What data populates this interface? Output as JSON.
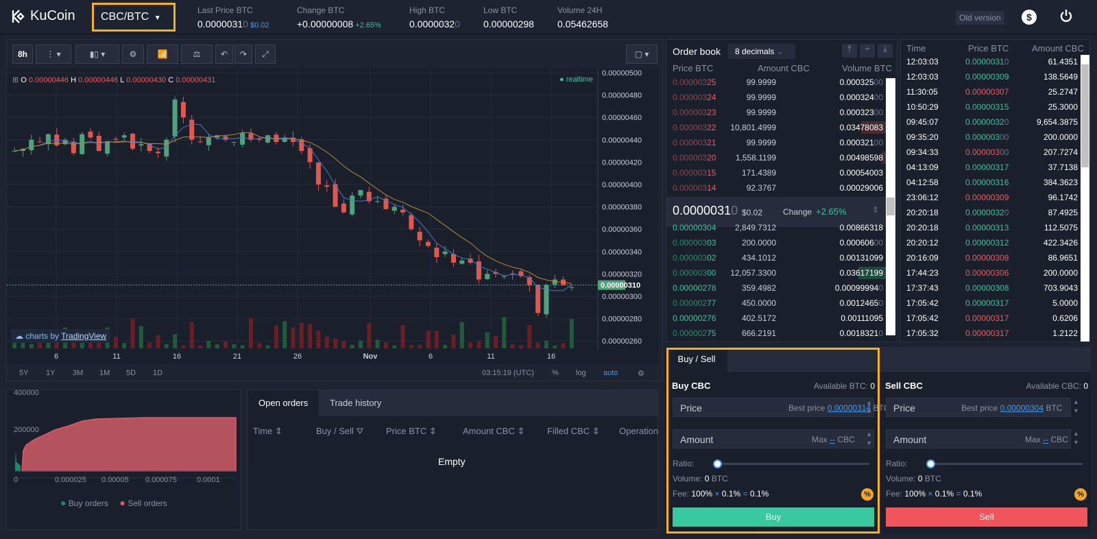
{
  "header": {
    "logo": "KuCoin",
    "pair": "CBC/BTC",
    "stats": [
      {
        "label": "Last Price BTC",
        "value": "0.0000031",
        "value_dim": "0",
        "extra": "$0.02",
        "color": "white"
      },
      {
        "label": "Change BTC",
        "value": "+0.00000008",
        "value_dim": "",
        "extra": "+2.65%",
        "color": "green"
      },
      {
        "label": "High BTC",
        "value": "0.0000032",
        "value_dim": "0",
        "extra": "",
        "color": "green"
      },
      {
        "label": "Low BTC",
        "value": "0.00000298",
        "value_dim": "",
        "extra": "",
        "color": "red"
      },
      {
        "label": "Volume 24H",
        "value": "0.05462658",
        "value_dim": "",
        "extra": "",
        "color": "white"
      }
    ],
    "old_version": "Old version"
  },
  "chart": {
    "interval": "8h",
    "ohlc": {
      "o_label": "O",
      "o": "0.00000446",
      "h_label": "H",
      "h": "0.00000446",
      "l_label": "L",
      "l": "0.00000430",
      "c_label": "C",
      "c": "0.00000431"
    },
    "realtime": "realtime",
    "y_ticks": [
      "0.00000500",
      "0.00000480",
      "0.00000460",
      "0.00000440",
      "0.00000420",
      "0.00000400",
      "0.00000380",
      "0.00000360",
      "0.00000340",
      "0.00000320",
      "0.00000300",
      "0.00000280",
      "0.00000260"
    ],
    "current_price_tag": "0.00000310",
    "x_ticks": [
      "6",
      "11",
      "16",
      "21",
      "26",
      "Nov",
      "6",
      "11",
      "16"
    ],
    "branding_prefix": "charts by",
    "branding_link": "TradingView",
    "ranges": [
      "5Y",
      "1Y",
      "3M",
      "1M",
      "5D",
      "1D"
    ],
    "time": "03:15:19 (UTC)",
    "pct": "%",
    "log": "log",
    "auto": "auto"
  },
  "depth": {
    "y_ticks": [
      "400000",
      "200000"
    ],
    "x_ticks": [
      "0",
      "0.000025",
      "0.00005",
      "0.000075",
      "0.0001"
    ],
    "legend_buy": "Buy orders",
    "legend_sell": "Sell orders",
    "buy_color": "#1d8a6e",
    "sell_color": "#e0596a"
  },
  "orders": {
    "tabs": [
      "Open orders",
      "Trade history"
    ],
    "columns": [
      "Time",
      "Buy / Sell",
      "Price BTC",
      "Amount CBC",
      "Filled CBC",
      "Operation"
    ],
    "empty": "Empty"
  },
  "orderbook": {
    "title": "Order book",
    "decimals": "8 decimals",
    "columns": [
      "Price BTC",
      "Amount CBC",
      "Volume BTC"
    ],
    "asks": [
      {
        "p1": "0.000003",
        "p2": "25",
        "amt": "99.9999",
        "v1": "0.000325",
        "v2": "00"
      },
      {
        "p1": "0.000003",
        "p2": "24",
        "amt": "99.9999",
        "v1": "0.000324",
        "v2": "00"
      },
      {
        "p1": "0.000003",
        "p2": "23",
        "amt": "99.9999",
        "v1": "0.000323",
        "v2": "00"
      },
      {
        "p1": "0.000003",
        "p2": "22",
        "amt": "10,801.4999",
        "v1": "0.03478083",
        "v2": ""
      },
      {
        "p1": "0.000003",
        "p2": "21",
        "amt": "99.9999",
        "v1": "0.000321",
        "v2": "00"
      },
      {
        "p1": "0.000003",
        "p2": "20",
        "amt": "1,558.1199",
        "v1": "0.00498598",
        "v2": ""
      },
      {
        "p1": "0.000003",
        "p2": "15",
        "amt": "171.4389",
        "v1": "0.00054003",
        "v2": ""
      },
      {
        "p1": "0.000003",
        "p2": "14",
        "amt": "92.3767",
        "v1": "0.00029006",
        "v2": ""
      }
    ],
    "mid_price": "0.0000031",
    "mid_price_dim": "0",
    "mid_usd": "$0.02",
    "change_label": "Change",
    "change": "+2.65%",
    "bids": [
      {
        "p1": "0.00000304",
        "p2": "",
        "amt": "2,849.7312",
        "v1": "0.00866318",
        "v2": ""
      },
      {
        "p1": "0.000003",
        "p2": "03",
        "amt": "200.0000",
        "v1": "0.000606",
        "v2": "00"
      },
      {
        "p1": "0.000003",
        "p2": "02",
        "amt": "434.1012",
        "v1": "0.00131099",
        "v2": ""
      },
      {
        "p1": "0.000003",
        "p2": "00",
        "amt": "12,057.3300",
        "v1": "0.03617199",
        "v2": ""
      },
      {
        "p1": "0.00000278",
        "p2": "",
        "amt": "359.4982",
        "v1": "0.00099994",
        "v2": "0"
      },
      {
        "p1": "0.000002",
        "p2": "77",
        "amt": "450.0000",
        "v1": "0.0012465",
        "v2": "0"
      },
      {
        "p1": "0.00000276",
        "p2": "",
        "amt": "402.5172",
        "v1": "0.00111095",
        "v2": ""
      },
      {
        "p1": "0.000002",
        "p2": "75",
        "amt": "666.2191",
        "v1": "0.0018321",
        "v2": "0"
      }
    ]
  },
  "trades": {
    "columns": [
      "Time",
      "Price BTC",
      "Amount CBC"
    ],
    "rows": [
      {
        "t": "12:03:03",
        "p": "0.0000031",
        "pd": "0",
        "a": "61.4351",
        "side": "g"
      },
      {
        "t": "12:03:03",
        "p": "0.00000309",
        "pd": "",
        "a": "138.5649",
        "side": "g"
      },
      {
        "t": "11:30:05",
        "p": "0.00000307",
        "pd": "",
        "a": "25.2747",
        "side": "r"
      },
      {
        "t": "10:50:29",
        "p": "0.00000315",
        "pd": "",
        "a": "25.3000",
        "side": "g"
      },
      {
        "t": "09:45:07",
        "p": "0.0000032",
        "pd": "0",
        "a": "9,654.3875",
        "side": "g"
      },
      {
        "t": "09:35:20",
        "p": "0.000003",
        "pd": "00",
        "a": "200.0000",
        "side": "g"
      },
      {
        "t": "09:34:33",
        "p": "0.000003",
        "pd": "00",
        "a": "207.7274",
        "side": "r"
      },
      {
        "t": "04:13:09",
        "p": "0.00000317",
        "pd": "",
        "a": "37.7138",
        "side": "g"
      },
      {
        "t": "04:12:58",
        "p": "0.00000316",
        "pd": "",
        "a": "384.3623",
        "side": "g"
      },
      {
        "t": "23:06:12",
        "p": "0.00000309",
        "pd": "",
        "a": "96.1742",
        "side": "r"
      },
      {
        "t": "20:20:18",
        "p": "0.0000032",
        "pd": "0",
        "a": "87.4925",
        "side": "g"
      },
      {
        "t": "20:20:18",
        "p": "0.00000313",
        "pd": "",
        "a": "112.5075",
        "side": "g"
      },
      {
        "t": "20:20:12",
        "p": "0.00000312",
        "pd": "",
        "a": "422.3426",
        "side": "g"
      },
      {
        "t": "20:16:09",
        "p": "0.00000308",
        "pd": "",
        "a": "86.9651",
        "side": "r"
      },
      {
        "t": "17:44:23",
        "p": "0.00000306",
        "pd": "",
        "a": "200.0000",
        "side": "r"
      },
      {
        "t": "17:37:43",
        "p": "0.00000308",
        "pd": "",
        "a": "703.9043",
        "side": "g"
      },
      {
        "t": "17:05:42",
        "p": "0.00000317",
        "pd": "",
        "a": "5.0000",
        "side": "g"
      },
      {
        "t": "17:05:42",
        "p": "0.00000317",
        "pd": "",
        "a": "0.6206",
        "side": "r"
      },
      {
        "t": "17:05:32",
        "p": "0.00000317",
        "pd": "",
        "a": "1.2122",
        "side": "r"
      }
    ]
  },
  "buysell": {
    "tab": "Buy / Sell",
    "buy": {
      "title": "Buy CBC",
      "available_label": "Available BTC:",
      "available": "0",
      "price_placeholder": "Price",
      "best_label": "Best price",
      "best_price": "0.00000314",
      "price_unit": "BTC",
      "amount_placeholder": "Amount",
      "max_label": "Max",
      "max_value": "--",
      "amount_unit": "CBC",
      "ratio_label": "Ratio:",
      "ratio": 0,
      "volume_label": "Volume:",
      "volume": "0",
      "volume_unit": "BTC",
      "fee_label": "Fee:",
      "fee_a": "100%",
      "fee_op1": "×",
      "fee_b": "0.1%",
      "fee_op2": "=",
      "fee_c": "0.1%",
      "button": "Buy"
    },
    "sell": {
      "title": "Sell CBC",
      "available_label": "Available CBC:",
      "available": "0",
      "price_placeholder": "Price",
      "best_label": "Best price",
      "best_price": "0.00000304",
      "price_unit": "BTC",
      "amount_placeholder": "Amount",
      "max_label": "Max",
      "max_value": "--",
      "amount_unit": "CBC",
      "ratio_label": "Ratio:",
      "ratio": 0,
      "volume_label": "Volume:",
      "volume": "0",
      "volume_unit": "BTC",
      "fee_label": "Fee:",
      "fee_a": "100%",
      "fee_op1": "×",
      "fee_b": "0.1%",
      "fee_op2": "=",
      "fee_c": "0.1%",
      "button": "Sell"
    }
  },
  "colors": {
    "green": "#39c39a",
    "red": "#f05a63",
    "accent": "#f5b21b",
    "buy_btn": "#39c9a0",
    "sell_btn": "#f2545b"
  }
}
